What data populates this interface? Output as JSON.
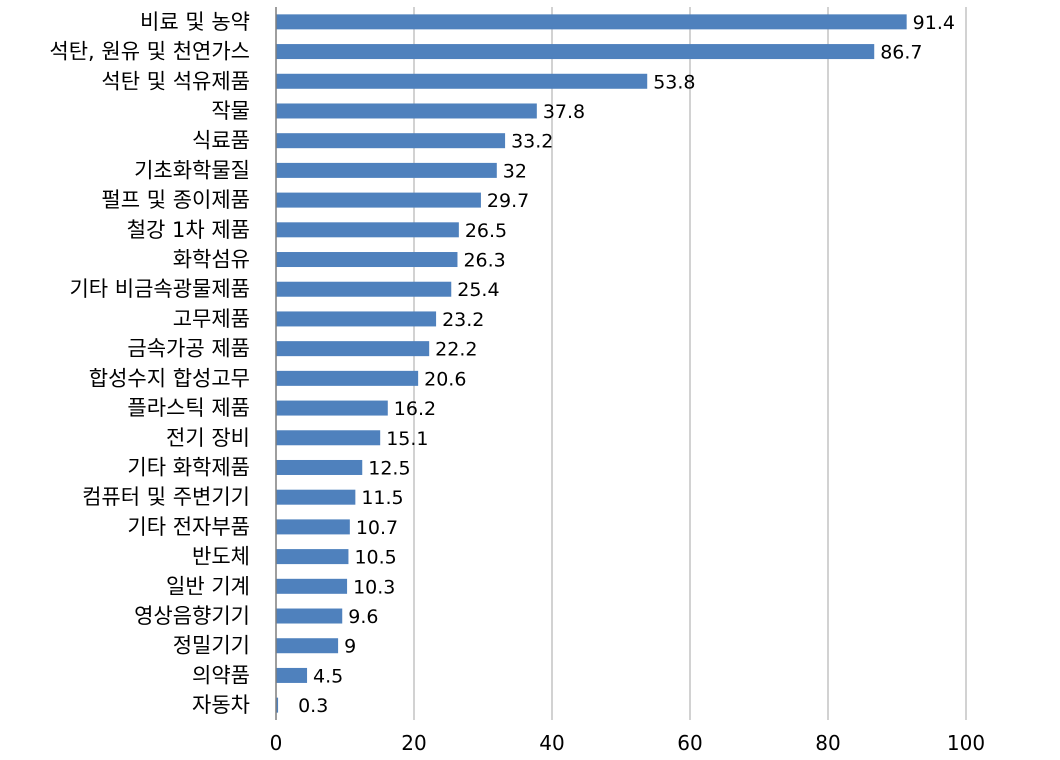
{
  "chart_data": {
    "type": "bar",
    "orientation": "horizontal",
    "categories": [
      "비료 및 농약",
      "석탄, 원유 및 천연가스",
      "석탄 및 석유제품",
      "작물",
      "식료품",
      "기초화학물질",
      "펄프 및 종이제품",
      "철강 1차 제품",
      "화학섬유",
      "기타 비금속광물제품",
      "고무제품",
      "금속가공 제품",
      "합성수지 합성고무",
      "플라스틱 제품",
      "전기 장비",
      "기타 화학제품",
      "컴퓨터 및 주변기기",
      "기타 전자부품",
      "반도체",
      "일반 기계",
      "영상음향기기",
      "정밀기기",
      "의약품",
      "자동차"
    ],
    "values": [
      91.4,
      86.7,
      53.8,
      37.8,
      33.2,
      32,
      29.7,
      26.5,
      26.3,
      25.4,
      23.2,
      22.2,
      20.6,
      16.2,
      15.1,
      12.5,
      11.5,
      10.7,
      10.5,
      10.3,
      9.6,
      9,
      4.5,
      0.3
    ],
    "value_labels": [
      "91.4",
      "86.7",
      "53.8",
      "37.8",
      "33.2",
      "32",
      "29.7",
      "26.5",
      "26.3",
      "25.4",
      "23.2",
      "22.2",
      "20.6",
      "16.2",
      "15.1",
      "12.5",
      "11.5",
      "10.7",
      "10.5",
      "10.3",
      "9.6",
      "9",
      "4.5",
      "0.3"
    ],
    "xlim": [
      0,
      100
    ],
    "xticks": [
      "0",
      "20",
      "40",
      "60",
      "80",
      "100"
    ],
    "grid": "vertical",
    "legend": "none",
    "title": "",
    "xlabel": "",
    "ylabel": "",
    "colors": {
      "bar": "#4f81bd",
      "grid": "#a6a6a6",
      "axis": "#7f7f7f"
    }
  }
}
